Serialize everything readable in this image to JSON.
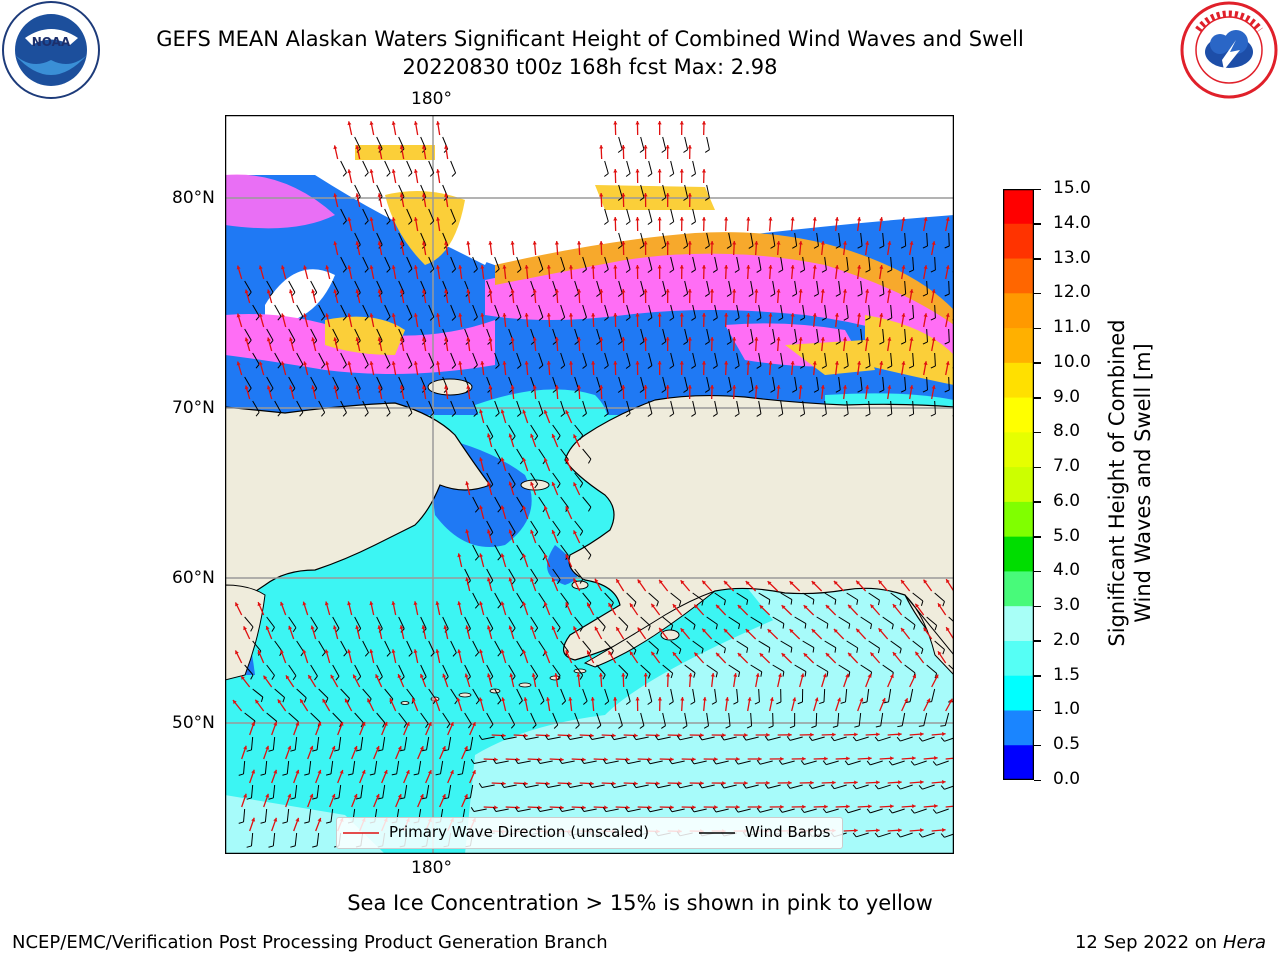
{
  "header": {
    "title_line1": "GEFS MEAN Alaskan Waters Significant Height of Combined Wind Waves and Swell",
    "title_line2": "20220830 t00z 168h fcst   Max: 2.98"
  },
  "logos": {
    "left": {
      "text": "NOAA",
      "ring_text": "NATIONAL OCEANIC AND ATMOSPHERIC ADMINISTRATION · U.S. DEPARTMENT OF COMMERCE"
    },
    "right": {
      "ring_text": "NATIONAL WEATHER SERVICE"
    }
  },
  "map": {
    "lon_top": "180°",
    "lon_bottom": "180°",
    "lat_labels": [
      "80°N",
      "70°N",
      "60°N",
      "50°N"
    ],
    "legend": {
      "wave_label": "Primary Wave Direction (unscaled)",
      "barb_label": "Wind Barbs"
    },
    "colors": {
      "land": "#efecdc",
      "ocean_light": "#a7fbfa",
      "ocean_cyan": "#3cf5f3",
      "ocean_blue": "#1f79f4",
      "ice_pink": "#ff6ef5",
      "ice_orange": "#f7a92c",
      "ice_yellow": "#fbcf39",
      "arrow": "#e01010"
    }
  },
  "colorbar": {
    "label_line1": "Significant Height of Combined",
    "label_line2": "Wind Waves and Swell [m]",
    "ticks": [
      "15.0",
      "14.0",
      "13.0",
      "12.0",
      "11.0",
      "10.0",
      "9.0",
      "8.0",
      "7.0",
      "6.0",
      "5.0",
      "4.0",
      "3.0",
      "2.0",
      "1.5",
      "1.0",
      "0.5",
      "0.0"
    ],
    "colors": [
      "#ff0000",
      "#ff3300",
      "#ff6600",
      "#ff9900",
      "#ffb000",
      "#ffe000",
      "#ffff00",
      "#e6ff00",
      "#ccff00",
      "#80ff00",
      "#00dd00",
      "#48fa7a",
      "#a8fff7",
      "#55fff5",
      "#00ffff",
      "#1a85ff",
      "#0000ff"
    ]
  },
  "footer": {
    "note": "Sea Ice Concentration > 15% is shown in pink to yellow",
    "left": "NCEP/EMC/Verification Post Processing Product Generation Branch",
    "right_date": "12 Sep 2022 on",
    "right_host": "Hera"
  }
}
